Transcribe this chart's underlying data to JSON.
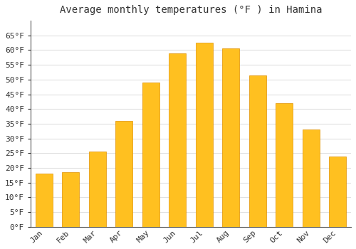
{
  "title": "Average monthly temperatures (°F ) in Hamina",
  "months": [
    "Jan",
    "Feb",
    "Mar",
    "Apr",
    "May",
    "Jun",
    "Jul",
    "Aug",
    "Sep",
    "Oct",
    "Nov",
    "Dec"
  ],
  "values": [
    18,
    18.5,
    25.5,
    36,
    49,
    59,
    62.5,
    60.5,
    51.5,
    42,
    33,
    24
  ],
  "bar_color_top": "#FFC020",
  "bar_color_bottom": "#F5A800",
  "bar_edge_color": "#E09000",
  "background_color": "#FFFFFF",
  "grid_color": "#E0E0E0",
  "text_color": "#333333",
  "yticks": [
    0,
    5,
    10,
    15,
    20,
    25,
    30,
    35,
    40,
    45,
    50,
    55,
    60,
    65
  ],
  "ylim": [
    0,
    70
  ],
  "title_fontsize": 10,
  "tick_fontsize": 8,
  "bar_width": 0.65
}
